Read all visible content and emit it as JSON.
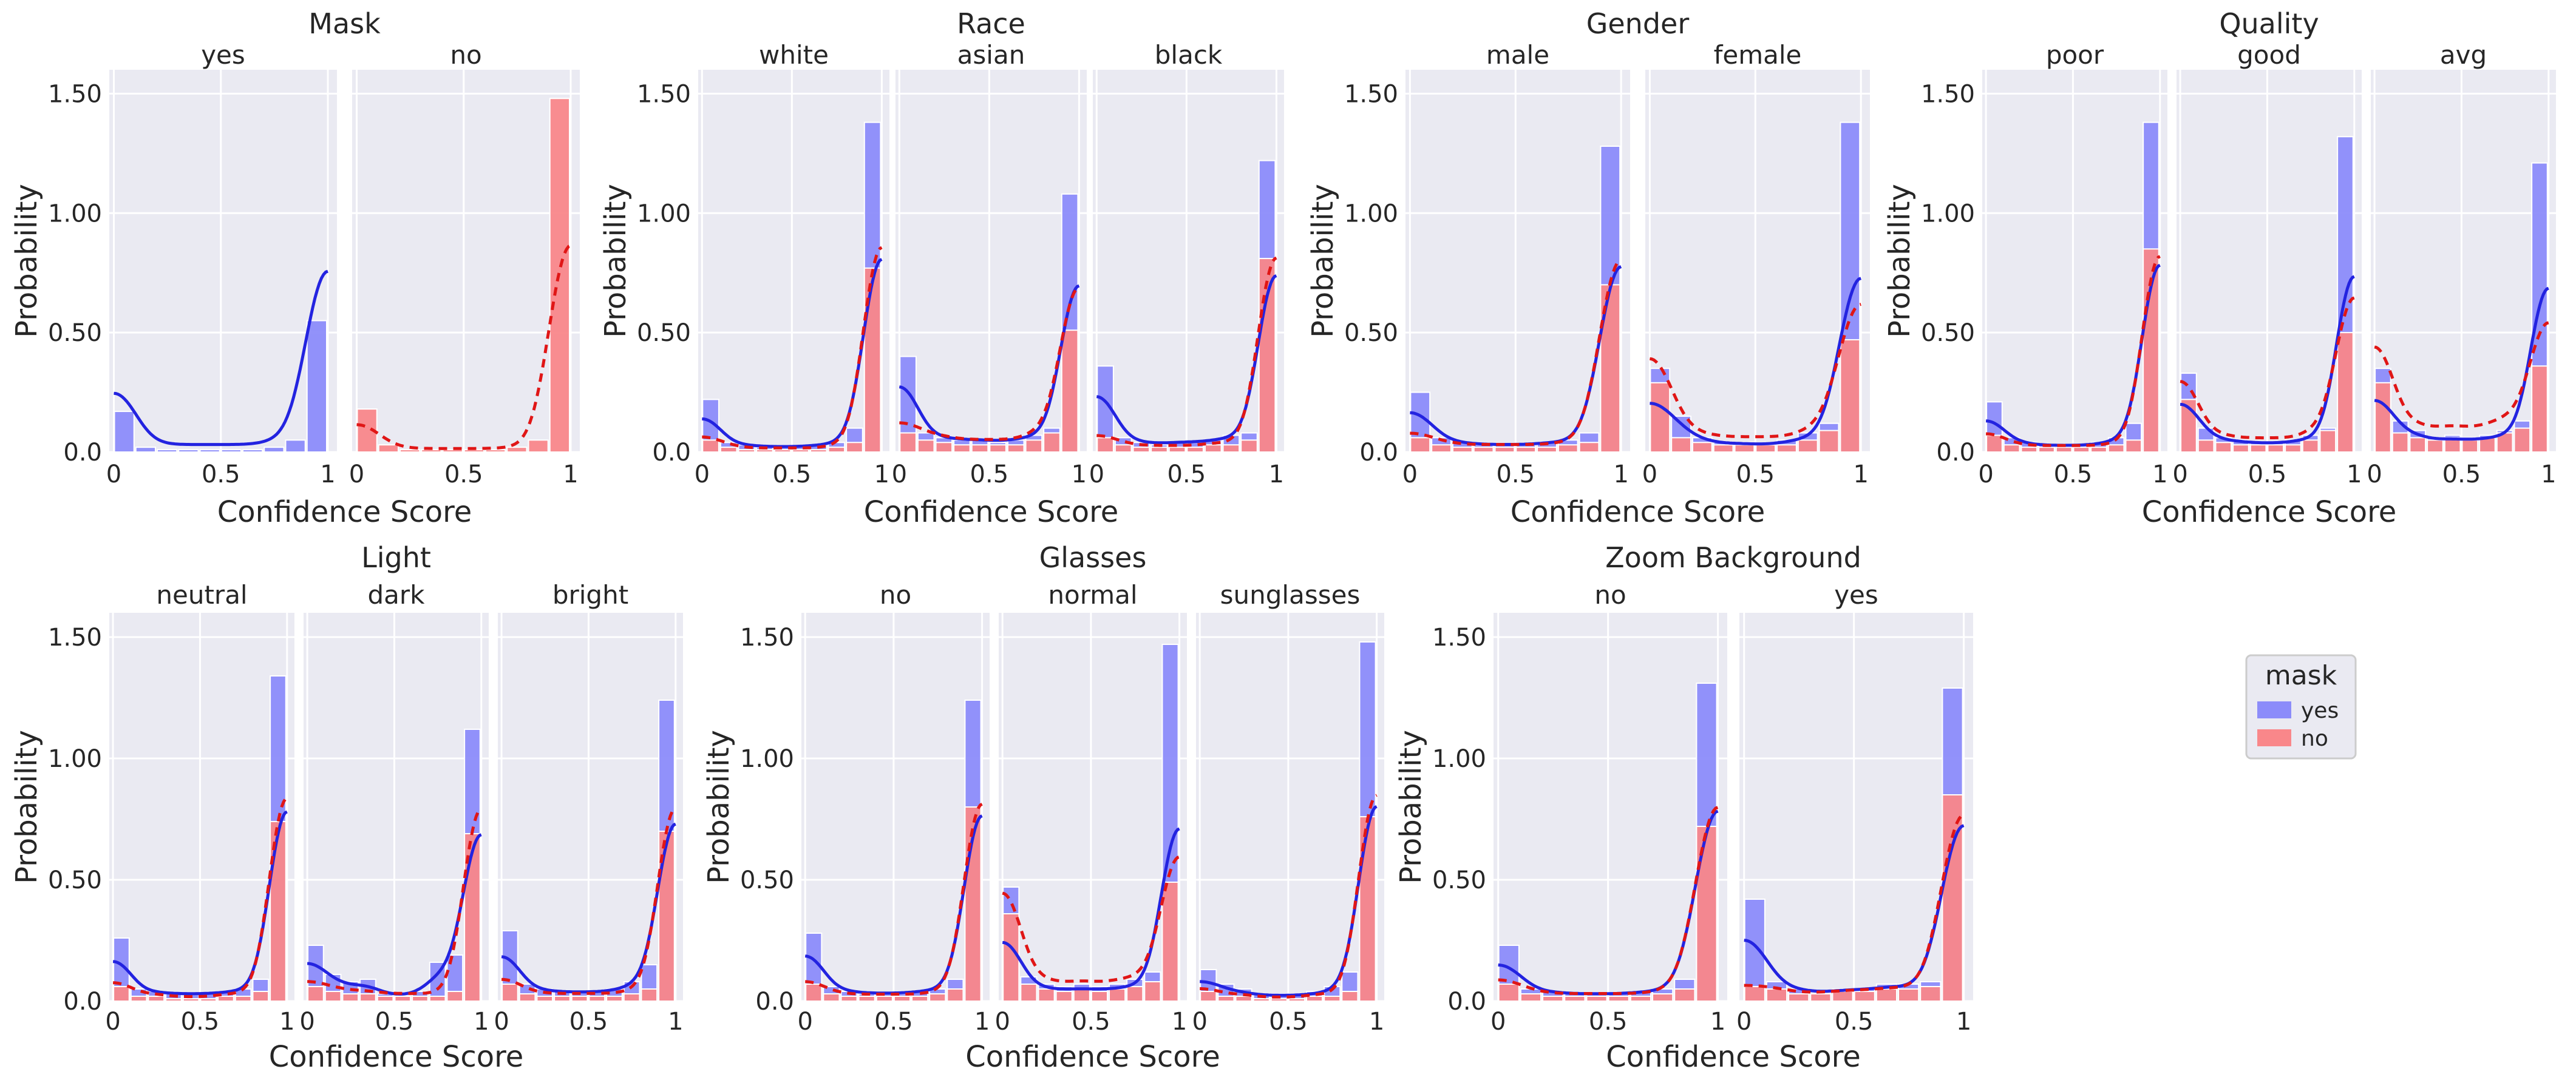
{
  "colors": {
    "panel_bg": "#eaeaf2",
    "grid": "#ffffff",
    "yes_bar": "#8c8cfa",
    "no_bar": "#f9878a",
    "yes_line": "#2323e0",
    "no_line": "#e01616"
  },
  "chart_data": {
    "type": "histogram-grid",
    "xlabel": "Confidence Score",
    "ylabel": "Probability",
    "xticks": [
      "0",
      "0.5",
      "1"
    ],
    "yticks": [
      "0.0",
      "0.50",
      "1.00",
      "1.50"
    ],
    "ylim": [
      0,
      1.6
    ],
    "bins": 10,
    "legend": {
      "title": "mask",
      "position": "right",
      "labels": [
        "yes",
        "no"
      ]
    },
    "groups": [
      {
        "title": "Mask",
        "panels": [
          {
            "title": "yes",
            "yes": [
              0.17,
              0.02,
              0.01,
              0.01,
              0.01,
              0.01,
              0.01,
              0.02,
              0.05,
              0.55
            ],
            "no": null
          },
          {
            "title": "no",
            "yes": null,
            "no": [
              0.18,
              0.03,
              0.01,
              0.01,
              0.01,
              0.01,
              0.01,
              0.02,
              0.05,
              1.48
            ]
          }
        ]
      },
      {
        "title": "Race",
        "panels": [
          {
            "title": "white",
            "yes": [
              0.22,
              0.04,
              0.03,
              0.02,
              0.02,
              0.02,
              0.03,
              0.04,
              0.1,
              1.38
            ],
            "no": [
              0.05,
              0.02,
              0.01,
              0.01,
              0.01,
              0.01,
              0.01,
              0.02,
              0.04,
              0.77
            ]
          },
          {
            "title": "asian",
            "yes": [
              0.4,
              0.08,
              0.06,
              0.05,
              0.05,
              0.04,
              0.05,
              0.07,
              0.1,
              1.08
            ],
            "no": [
              0.08,
              0.05,
              0.04,
              0.03,
              0.03,
              0.03,
              0.03,
              0.05,
              0.08,
              0.51
            ]
          },
          {
            "title": "black",
            "yes": [
              0.36,
              0.06,
              0.04,
              0.03,
              0.04,
              0.04,
              0.05,
              0.07,
              0.08,
              1.22
            ],
            "no": [
              0.06,
              0.03,
              0.02,
              0.02,
              0.02,
              0.02,
              0.03,
              0.03,
              0.05,
              0.81
            ]
          }
        ]
      },
      {
        "title": "Gender",
        "panels": [
          {
            "title": "male",
            "yes": [
              0.25,
              0.06,
              0.04,
              0.03,
              0.03,
              0.03,
              0.04,
              0.05,
              0.08,
              1.28
            ],
            "no": [
              0.06,
              0.03,
              0.02,
              0.02,
              0.02,
              0.02,
              0.02,
              0.03,
              0.04,
              0.7
            ]
          },
          {
            "title": "female",
            "yes": [
              0.35,
              0.15,
              0.06,
              0.04,
              0.04,
              0.03,
              0.05,
              0.08,
              0.12,
              1.38
            ],
            "no": [
              0.29,
              0.06,
              0.04,
              0.03,
              0.03,
              0.03,
              0.03,
              0.05,
              0.09,
              0.47
            ]
          }
        ]
      },
      {
        "title": "Quality",
        "panels": [
          {
            "title": "poor",
            "yes": [
              0.21,
              0.06,
              0.04,
              0.03,
              0.03,
              0.03,
              0.04,
              0.06,
              0.12,
              1.38
            ],
            "no": [
              0.07,
              0.03,
              0.02,
              0.02,
              0.02,
              0.02,
              0.02,
              0.03,
              0.05,
              0.85
            ]
          },
          {
            "title": "good",
            "yes": [
              0.33,
              0.1,
              0.06,
              0.05,
              0.04,
              0.04,
              0.05,
              0.07,
              0.1,
              1.32
            ],
            "no": [
              0.22,
              0.05,
              0.04,
              0.03,
              0.03,
              0.03,
              0.03,
              0.05,
              0.09,
              0.5
            ]
          },
          {
            "title": "avg",
            "yes": [
              0.35,
              0.13,
              0.09,
              0.06,
              0.07,
              0.06,
              0.07,
              0.09,
              0.13,
              1.21
            ],
            "no": [
              0.29,
              0.08,
              0.06,
              0.05,
              0.06,
              0.05,
              0.06,
              0.08,
              0.1,
              0.36
            ]
          }
        ]
      },
      {
        "title": "Light",
        "panels": [
          {
            "title": "neutral",
            "yes": [
              0.26,
              0.05,
              0.04,
              0.03,
              0.03,
              0.03,
              0.04,
              0.05,
              0.09,
              1.34
            ],
            "no": [
              0.06,
              0.02,
              0.02,
              0.01,
              0.01,
              0.01,
              0.02,
              0.02,
              0.04,
              0.74
            ]
          },
          {
            "title": "dark",
            "yes": [
              0.23,
              0.11,
              0.08,
              0.09,
              0.03,
              0.02,
              0.04,
              0.16,
              0.19,
              1.12
            ],
            "no": [
              0.06,
              0.04,
              0.03,
              0.03,
              0.02,
              0.02,
              0.02,
              0.02,
              0.04,
              0.69
            ]
          },
          {
            "title": "bright",
            "yes": [
              0.29,
              0.07,
              0.05,
              0.04,
              0.04,
              0.04,
              0.05,
              0.08,
              0.15,
              1.24
            ],
            "no": [
              0.07,
              0.03,
              0.02,
              0.02,
              0.02,
              0.02,
              0.02,
              0.03,
              0.05,
              0.7
            ]
          }
        ]
      },
      {
        "title": "Glasses",
        "panels": [
          {
            "title": "no",
            "yes": [
              0.28,
              0.06,
              0.04,
              0.03,
              0.03,
              0.03,
              0.04,
              0.05,
              0.09,
              1.24
            ],
            "no": [
              0.07,
              0.03,
              0.02,
              0.02,
              0.02,
              0.02,
              0.02,
              0.03,
              0.05,
              0.8
            ]
          },
          {
            "title": "normal",
            "yes": [
              0.47,
              0.1,
              0.07,
              0.06,
              0.07,
              0.06,
              0.07,
              0.09,
              0.12,
              1.47
            ],
            "no": [
              0.36,
              0.07,
              0.05,
              0.04,
              0.05,
              0.04,
              0.05,
              0.06,
              0.08,
              0.49
            ]
          },
          {
            "title": "sunglasses",
            "yes": [
              0.13,
              0.07,
              0.05,
              0.03,
              0.03,
              0.03,
              0.04,
              0.06,
              0.12,
              1.48
            ],
            "no": [
              0.04,
              0.02,
              0.02,
              0.01,
              0.01,
              0.01,
              0.02,
              0.02,
              0.04,
              0.76
            ]
          }
        ]
      },
      {
        "title": "Zoom Background",
        "panels": [
          {
            "title": "no",
            "yes": [
              0.23,
              0.05,
              0.04,
              0.03,
              0.03,
              0.03,
              0.04,
              0.05,
              0.09,
              1.31
            ],
            "no": [
              0.07,
              0.03,
              0.02,
              0.02,
              0.02,
              0.02,
              0.02,
              0.03,
              0.05,
              0.72
            ]
          },
          {
            "title": "yes",
            "yes": [
              0.42,
              0.08,
              0.05,
              0.03,
              0.05,
              0.05,
              0.07,
              0.07,
              0.08,
              1.29
            ],
            "no": [
              0.06,
              0.05,
              0.03,
              0.03,
              0.04,
              0.04,
              0.05,
              0.05,
              0.06,
              0.85
            ]
          }
        ]
      }
    ]
  }
}
